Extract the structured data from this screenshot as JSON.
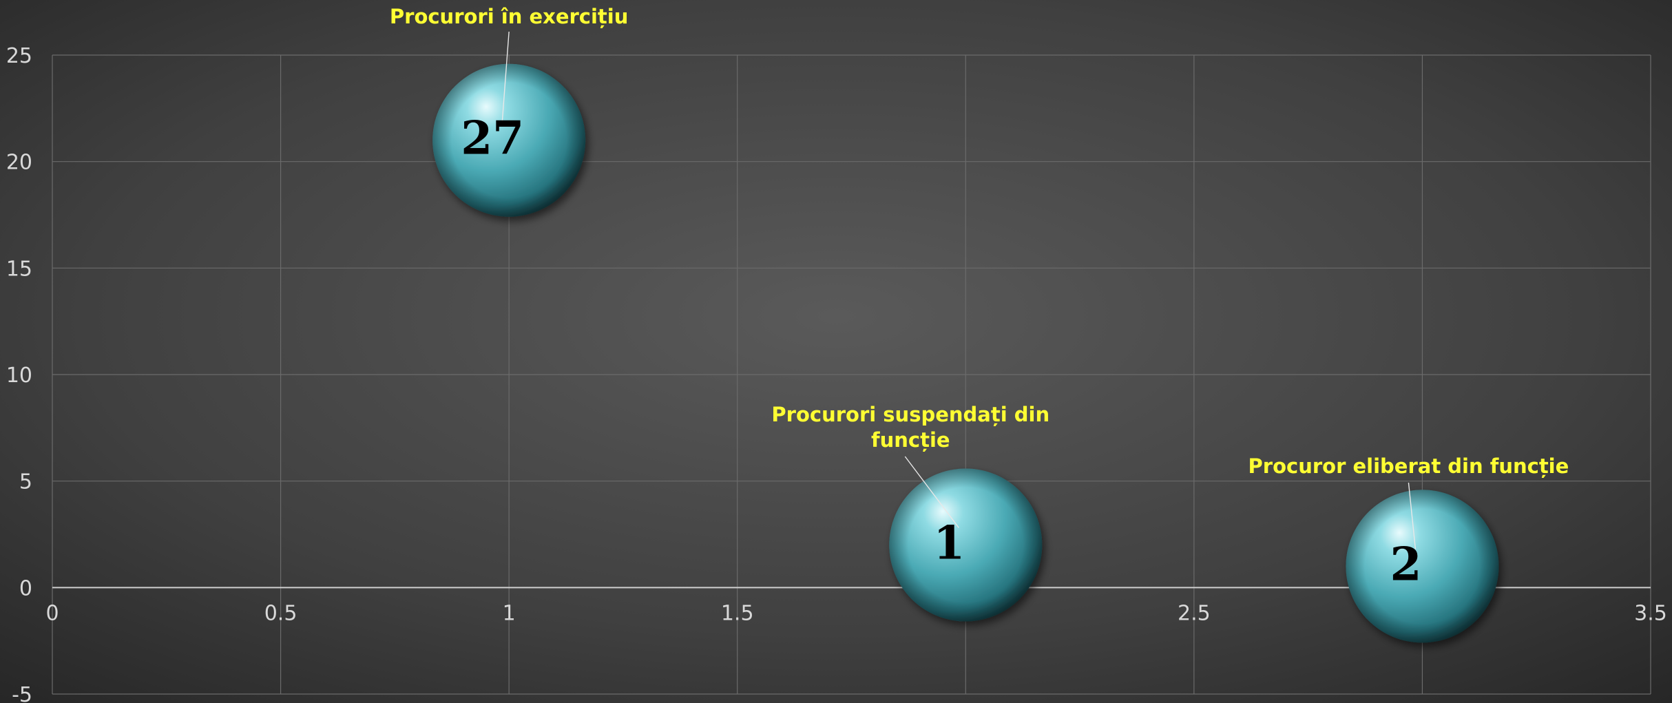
{
  "chart_data": {
    "type": "scatter",
    "title": "",
    "xlabel": "",
    "ylabel": "",
    "xlim": [
      0,
      3.5
    ],
    "ylim": [
      -5,
      25
    ],
    "x_ticks": [
      "0",
      "0.5",
      "1",
      "1.5",
      "2",
      "2.5",
      "3",
      "3.5"
    ],
    "y_ticks": [
      "-5",
      "0",
      "5",
      "10",
      "15",
      "20",
      "25"
    ],
    "grid": true,
    "legend": "none",
    "points": [
      {
        "x": 1,
        "y": 21,
        "value_label": "27",
        "category_label": [
          "Procurori în exercițiu"
        ]
      },
      {
        "x": 2,
        "y": 2,
        "value_label": "1",
        "category_label": [
          "Procurori suspendați din",
          "funcție"
        ]
      },
      {
        "x": 3,
        "y": 1,
        "value_label": "2",
        "category_label": [
          "Procuror eliberat din funcție"
        ]
      }
    ],
    "colors": {
      "background": "#3a3a3a",
      "bubble": "#4fb3bf",
      "label": "#ffff33",
      "tick": "#d9d9d9"
    }
  }
}
